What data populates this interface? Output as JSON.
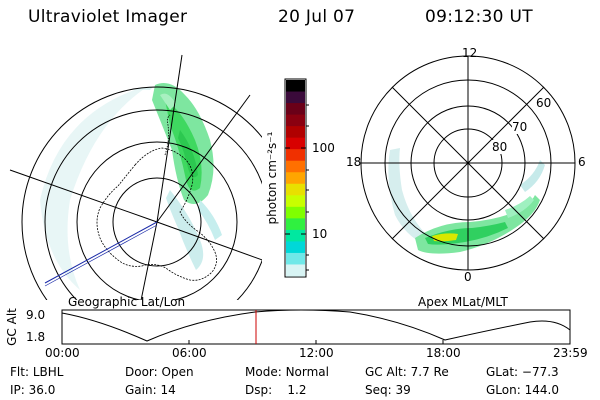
{
  "header": {
    "title": "Ultraviolet Imager",
    "date": "20 Jul 07",
    "time": "09:12:30 UT"
  },
  "left_panel": {
    "caption": "Geographic Lat/Lon"
  },
  "right_panel": {
    "caption": "Apex MLat/MLT",
    "mlt_labels": [
      "12",
      "18",
      "6",
      "0"
    ],
    "mlat_labels": [
      "60",
      "70",
      "80"
    ]
  },
  "colorbar": {
    "unit_label": "photon cm⁻²s⁻¹",
    "tick_labels": [
      "100",
      "10"
    ],
    "colors": [
      "#000000",
      "#3a0a3a",
      "#6a0018",
      "#8a0010",
      "#b00000",
      "#d80000",
      "#f03000",
      "#ff7000",
      "#ffa500",
      "#e8e000",
      "#c8ff00",
      "#80ff00",
      "#30f040",
      "#00e8a0",
      "#00d8d8",
      "#70e8e8",
      "#d8f4f4"
    ]
  },
  "gc_alt_plot": {
    "ylabel": "GC Alt",
    "y_ticks": [
      "9.0",
      "1.8"
    ],
    "x_ticks": [
      "00:00",
      "06:00",
      "12:00",
      "18:00",
      "23:59"
    ],
    "current_time_marker_color": "#cc0000"
  },
  "info": {
    "row1": [
      {
        "label": "Flt:",
        "value": "LBHL"
      },
      {
        "label": "Door:",
        "value": "Open"
      },
      {
        "label": "Mode:",
        "value": "Normal"
      },
      {
        "label": "GC Alt:",
        "value": "7.7 Re"
      },
      {
        "label": "GLat:",
        "value": "−77.3"
      }
    ],
    "row2": [
      {
        "label": "IP:",
        "value": "36.0"
      },
      {
        "label": "Gain:",
        "value": "14"
      },
      {
        "label": "Dsp:",
        "value": "1.2"
      },
      {
        "label": "Seq:",
        "value": "39"
      },
      {
        "label": "GLon:",
        "value": "144.0"
      }
    ]
  }
}
